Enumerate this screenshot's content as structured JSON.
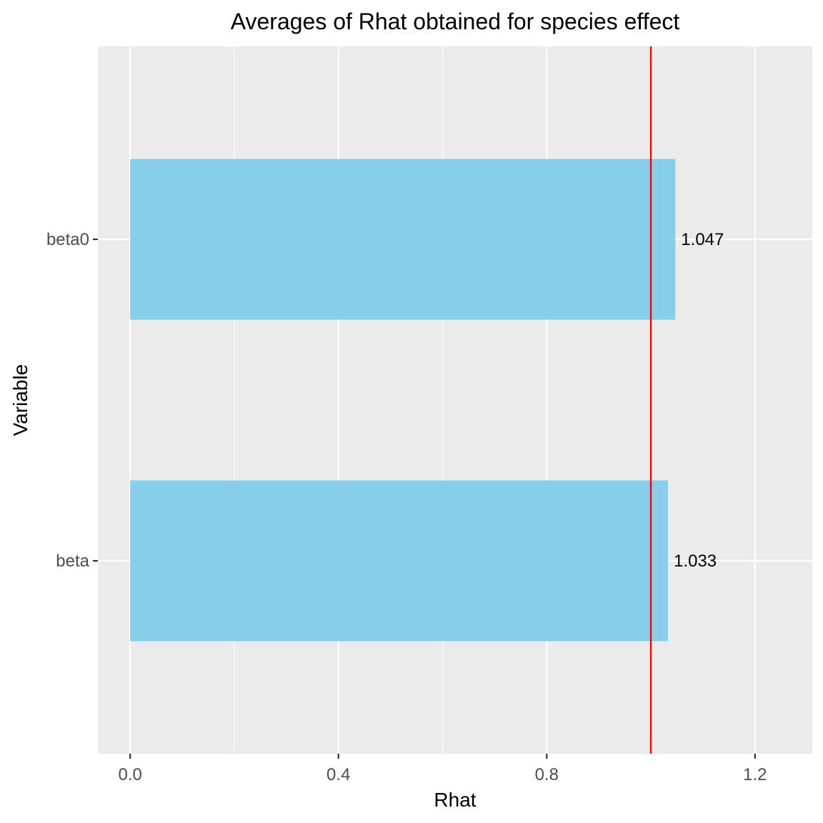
{
  "chart_data": {
    "type": "bar",
    "orientation": "horizontal",
    "title": "Averages of Rhat obtained for species effect",
    "xlabel": "Rhat",
    "ylabel": "Variable",
    "categories": [
      "beta0",
      "beta"
    ],
    "values": [
      1.047,
      1.033
    ],
    "data_labels": [
      "1.047",
      "1.033"
    ],
    "xlim": [
      -0.062,
      1.31
    ],
    "xticks": [
      0.0,
      0.4,
      0.8,
      1.2
    ],
    "xtick_labels": [
      "0.0",
      "0.4",
      "0.8",
      "1.2"
    ],
    "reference_line": {
      "axis": "x",
      "value": 1.0,
      "color": "#ff0000"
    },
    "grid": true,
    "legend": "none",
    "colors": {
      "bar": "#87ceeb",
      "panel": "#ebebeb",
      "grid": "#ffffff",
      "reference": "#ff0000"
    }
  }
}
